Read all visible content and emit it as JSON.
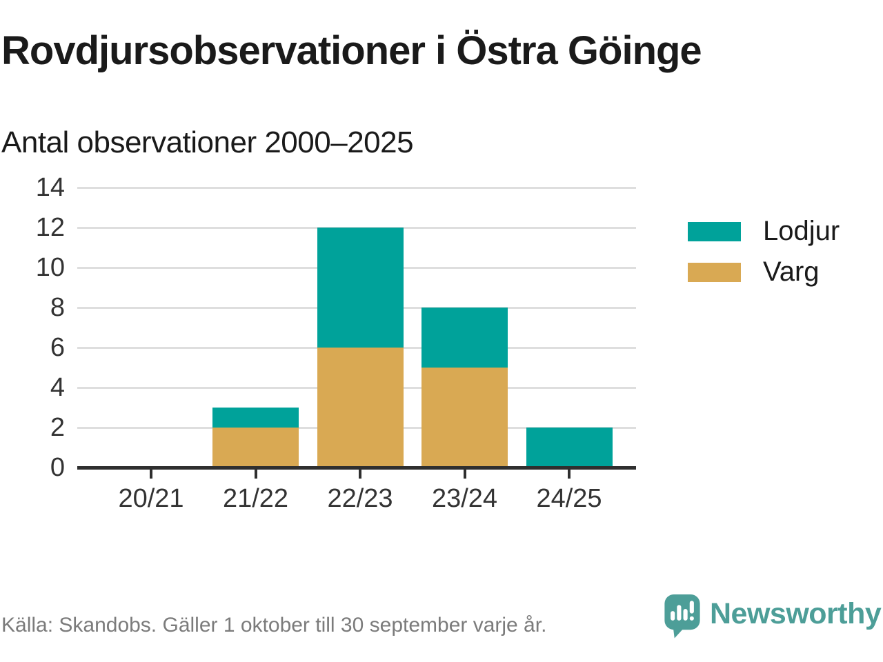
{
  "header": {
    "title": "Rovdjursobservationer i Östra Göinge",
    "subtitle": "Antal observationer 2000–2025"
  },
  "chart_data": {
    "type": "bar",
    "stacked": true,
    "title": "Rovdjursobservationer i Östra Göinge",
    "subtitle": "Antal observationer 2000–2025",
    "categories": [
      "20/21",
      "21/22",
      "22/23",
      "23/24",
      "24/25"
    ],
    "series": [
      {
        "name": "Varg",
        "color": "#d9a953",
        "values": [
          0,
          2,
          6,
          5,
          0
        ]
      },
      {
        "name": "Lodjur",
        "color": "#00a29a",
        "values": [
          0,
          1,
          6,
          3,
          2
        ]
      }
    ],
    "stack_order_bottom_to_top": [
      "Varg",
      "Lodjur"
    ],
    "totals": [
      0,
      3,
      12,
      8,
      2
    ],
    "xlabel": "",
    "ylabel": "",
    "ylim": [
      0,
      14
    ],
    "yticks": [
      0,
      2,
      4,
      6,
      8,
      10,
      12,
      14
    ],
    "grid": true,
    "legend": {
      "position": "right",
      "entries": [
        {
          "label": "Lodjur",
          "color": "#00a29a"
        },
        {
          "label": "Varg",
          "color": "#d9a953"
        }
      ]
    }
  },
  "footer": {
    "source": "Källa: Skandobs. Gäller 1 oktober till 30 september varje år.",
    "brand_name": "Newsworthy"
  },
  "icons": {
    "brand_icon": "newsworthy-speech-bubble-bar-chart-icon"
  },
  "theme": {
    "teal": "#00a29a",
    "gold": "#d9a953",
    "brand_teal": "#4d9e98",
    "grid_color": "#dedede",
    "axis_color": "#2f2f2f",
    "tick_label_color": "#333333",
    "text_color": "#1a1a1a",
    "source_color": "#7b7b7b",
    "background": "#ffffff"
  }
}
